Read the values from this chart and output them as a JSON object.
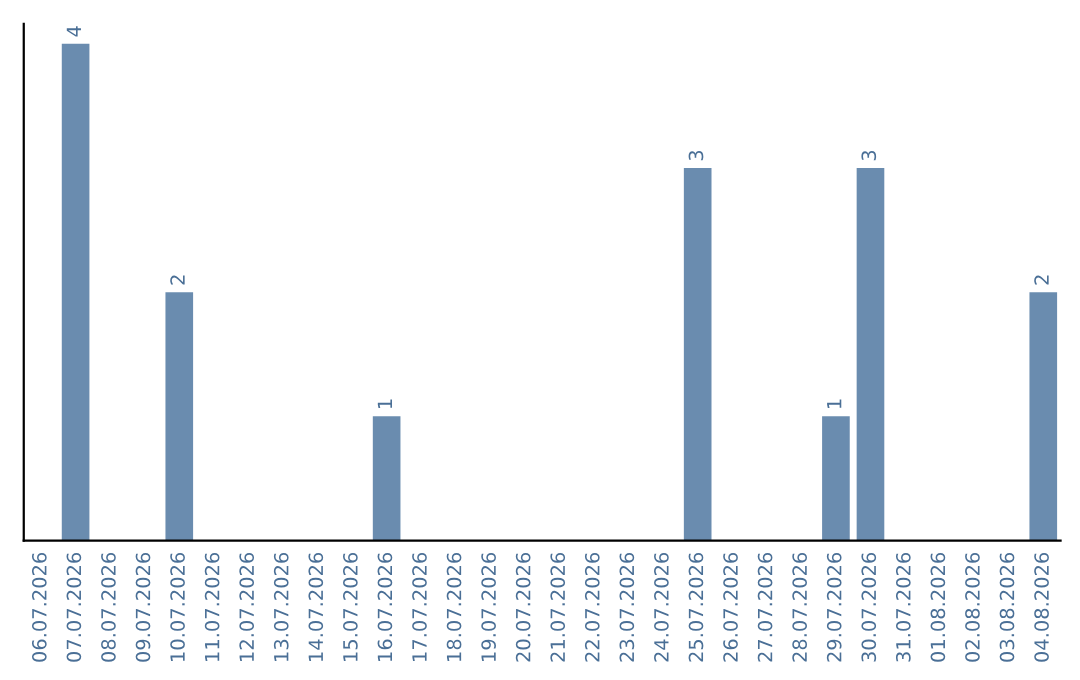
{
  "chart_data": {
    "type": "bar",
    "categories": [
      "06.07.2026",
      "07.07.2026",
      "08.07.2026",
      "09.07.2026",
      "10.07.2026",
      "11.07.2026",
      "12.07.2026",
      "13.07.2026",
      "14.07.2026",
      "15.07.2026",
      "16.07.2026",
      "17.07.2026",
      "18.07.2026",
      "19.07.2026",
      "20.07.2026",
      "21.07.2026",
      "22.07.2026",
      "23.07.2026",
      "24.07.2026",
      "25.07.2026",
      "26.07.2026",
      "27.07.2026",
      "28.07.2026",
      "29.07.2026",
      "30.07.2026",
      "31.07.2026",
      "01.08.2026",
      "02.08.2026",
      "03.08.2026",
      "04.08.2026"
    ],
    "values": [
      null,
      4,
      null,
      null,
      2,
      null,
      null,
      null,
      null,
      null,
      1,
      null,
      null,
      null,
      null,
      null,
      null,
      null,
      null,
      3,
      null,
      null,
      null,
      1,
      3,
      null,
      null,
      null,
      null,
      2
    ],
    "color": "#6a8caf",
    "data_labels": true,
    "grid": false,
    "legend": false
  }
}
